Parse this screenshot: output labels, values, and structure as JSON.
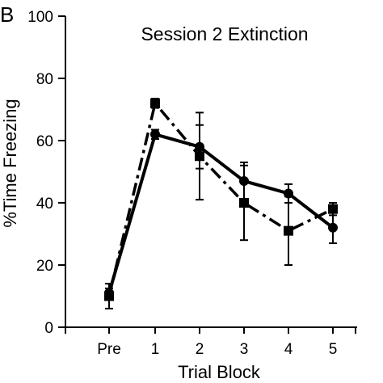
{
  "chart_data": {
    "type": "line",
    "panel_label": "B",
    "title": "Session 2 Extinction",
    "xlabel": "Trial Block",
    "ylabel": "%Time Freezing",
    "categories": [
      "Pre",
      "1",
      "2",
      "3",
      "4",
      "5"
    ],
    "ylim": [
      0,
      100
    ],
    "yticks": [
      0,
      20,
      40,
      60,
      80,
      100
    ],
    "grid": false,
    "legend": "none",
    "series": [
      {
        "marker": "circle",
        "line_style": "solid",
        "color": "#000000",
        "values": [
          11,
          62,
          58,
          47,
          43,
          32
        ],
        "errors": [
          1.5,
          1.5,
          7,
          6,
          3,
          5
        ]
      },
      {
        "marker": "square",
        "line_style": "dashdot",
        "color": "#000000",
        "values": [
          10,
          72,
          55,
          40,
          31,
          38
        ],
        "errors": [
          4,
          1.5,
          14,
          12,
          11,
          2
        ]
      }
    ]
  }
}
